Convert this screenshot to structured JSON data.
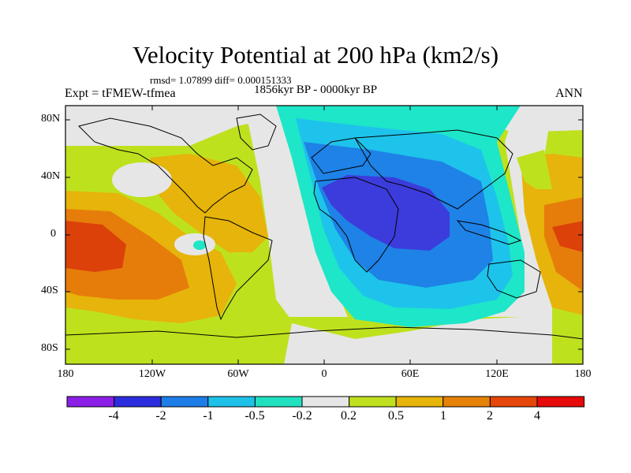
{
  "title": "Velocity Potential at 200 hPa (km2/s)",
  "stats": "rmsd= 1.07899 diff= 0.000151333",
  "period": "1856kyr BP - 0000kyr BP",
  "experiment": "Expt = tFMEW-tfmea",
  "season": "ANN",
  "lat_labels": [
    "80N",
    "40N",
    "0",
    "40S",
    "80S"
  ],
  "lon_labels": [
    "180",
    "120W",
    "60W",
    "0",
    "60E",
    "120E",
    "180"
  ],
  "colorbar": {
    "labels": [
      "-4",
      "-2",
      "-1",
      "-0.5",
      "-0.2",
      "0.2",
      "0.5",
      "1",
      "2",
      "4"
    ],
    "colors": [
      "#8c1fe6",
      "#2d2de0",
      "#1e7ee8",
      "#1ec1e8",
      "#20e0c0",
      "#e6e6e6",
      "#bfe01e",
      "#e6b40a",
      "#e6820a",
      "#e6460a",
      "#e60a0a"
    ]
  },
  "palette": {
    "deep_blue": "#3c3cdc",
    "blue": "#1e82e6",
    "light_blue": "#1ec3eb",
    "teal": "#1ee6c8",
    "gray": "#e6e6e6",
    "yellow_green": "#bee11e",
    "gold": "#e6b40a",
    "orange": "#e67d0a",
    "red_orange": "#dc410a",
    "outline": "#000000"
  }
}
